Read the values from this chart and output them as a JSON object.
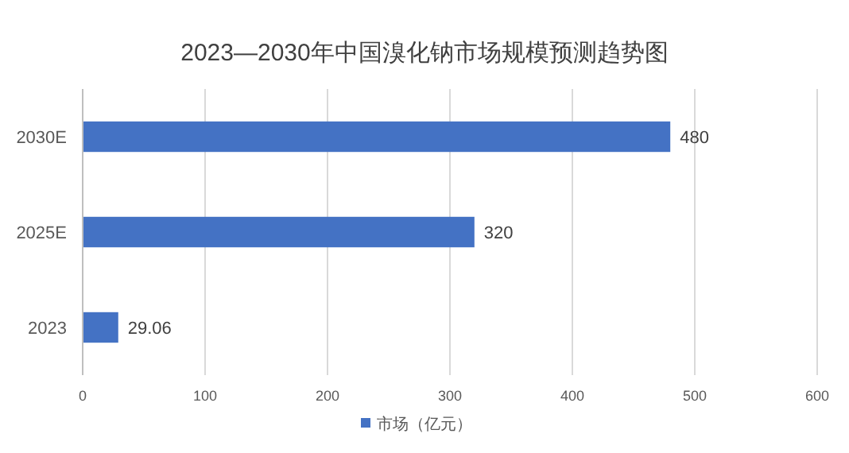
{
  "chart_data": {
    "type": "bar",
    "orientation": "horizontal",
    "title": "2023—2030年中国溴化钠市场规模预测趋势图",
    "categories": [
      "2030E",
      "2025E",
      "2023"
    ],
    "series": [
      {
        "name": "市场（亿元）",
        "color": "#4472c4",
        "values": [
          480,
          320,
          29.06
        ]
      }
    ],
    "xlim": [
      0,
      600
    ],
    "xticks": [
      0,
      100,
      200,
      300,
      400,
      500,
      600
    ],
    "grid": "x",
    "data_labels": true,
    "legend": "bottom"
  }
}
